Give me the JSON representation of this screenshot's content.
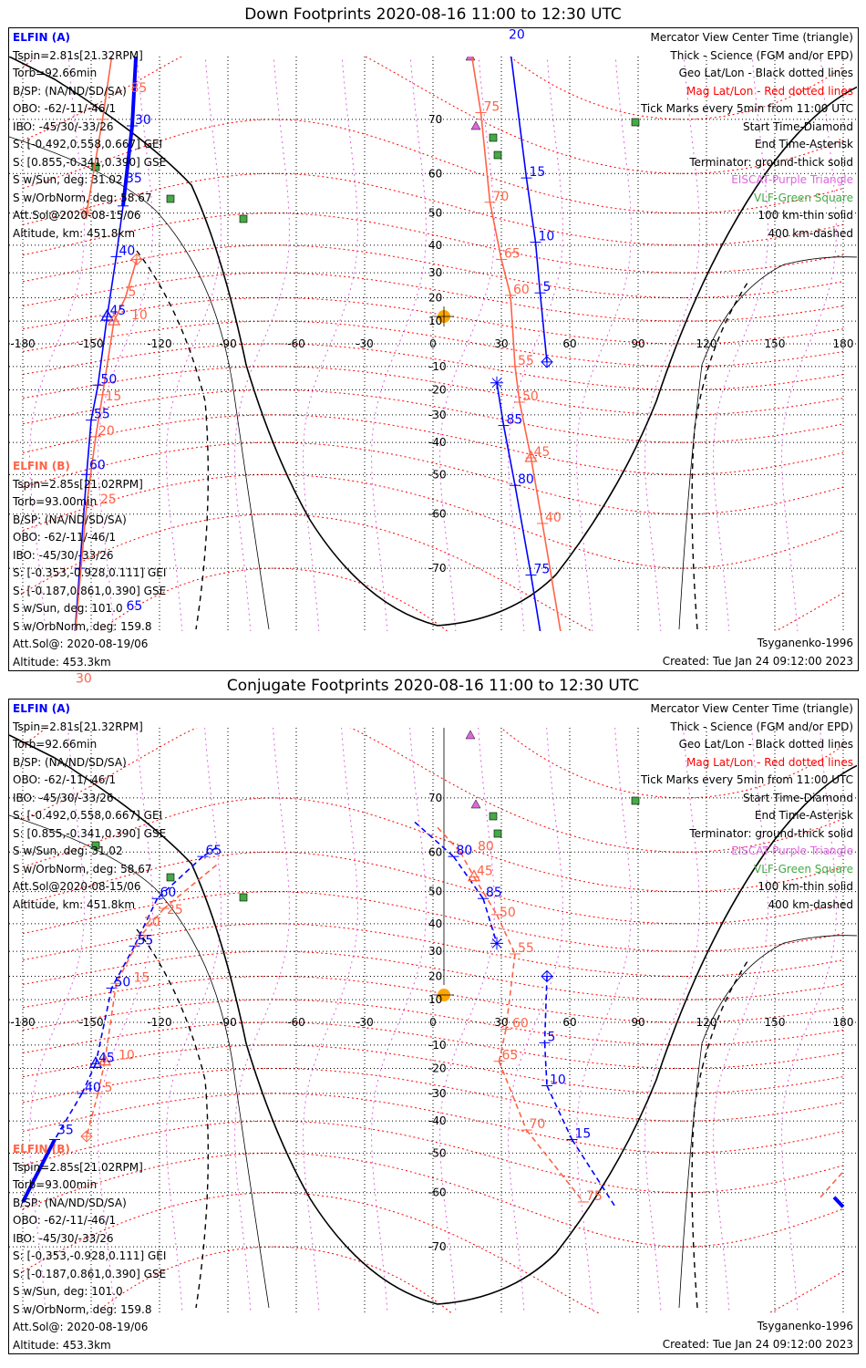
{
  "colors": {
    "elfin_a": "#0000ff",
    "elfin_b": "#ff6347",
    "geo_grid": "#000000",
    "mag_grid": "#ff0000",
    "eiscat": "#dd66dd",
    "vlf": "#44aa44",
    "sun": "#ffa500"
  },
  "legend": [
    {
      "text": "Mercator View Center Time (triangle)",
      "color": "#000000"
    },
    {
      "text": "Thick - Science (FGM and/or EPD)",
      "color": "#000000"
    },
    {
      "text": "Geo Lat/Lon - Black dotted lines",
      "color": "#000000"
    },
    {
      "text": "Mag Lat/Lon - Red dotted lines",
      "color": "#ff0000"
    },
    {
      "text": "Tick Marks every 5min from 11:00 UTC",
      "color": "#000000"
    },
    {
      "text": "Start Time-Diamond",
      "color": "#000000"
    },
    {
      "text": "End Time-Asterisk",
      "color": "#000000"
    },
    {
      "text": "Terminator: ground-thick solid",
      "color": "#000000"
    },
    {
      "text": "EISCAT-Purple Triangle",
      "color": "#dd66dd"
    },
    {
      "text": "VLF-Green Square",
      "color": "#44aa44"
    },
    {
      "text": "100 km-thin solid",
      "color": "#000000"
    },
    {
      "text": "400 km-dashed",
      "color": "#000000"
    }
  ],
  "elfin_a": {
    "name": "ELFIN (A)",
    "lines": [
      "Tspin=2.81s[21.32RPM]",
      "Torb=92.66min",
      "B/SP: (NA/ND/SD/SA)",
      "OBO: -62/-11/-46/1",
      "IBO: -45/30/-33/26",
      "S: [-0.492,0.558,0.667] GEI",
      "S: [0.855,-0.341,0.390] GSE",
      "S w/Sun, deg: 31.02",
      "S w/OrbNorm, deg: 58.67",
      "Att.Sol@2020-08-15/06",
      "Altitude, km: 451.8km"
    ]
  },
  "elfin_b": {
    "name": "ELFIN (B)",
    "lines": [
      "Tspin=2.85s[21.02RPM]",
      "Torb=93.00min",
      "B/SP: (NA/ND/SD/SA)",
      "OBO: -62/-11/-46/1",
      "IBO: -45/30/-33/26",
      "S: [-0.353,-0.928,0.111] GEI",
      "S: [-0.187,0.861,0.390] GSE",
      "S w/Sun, deg: 101.0",
      "S w/OrbNorm, deg: 159.8",
      "Att.Sol@: 2020-08-19/06",
      "Altitude: 453.3km"
    ]
  },
  "model": "Tsyganenko-1996",
  "created": "Created: Tue Jan 24 09:12:00 2023",
  "chart_data": [
    {
      "type": "line",
      "title": "Down Footprints 2020-08-16 11:00 to 12:30 UTC",
      "projection": "mercator",
      "lon_ticks": [
        "-180",
        "-150",
        "-120",
        "-90",
        "-60",
        "-30",
        "0",
        "30",
        "60",
        "90",
        "120",
        "150",
        "180"
      ],
      "lat_ticks": [
        "70",
        "60",
        "50",
        "40",
        "30",
        "20",
        "10",
        "0",
        "-10",
        "-20",
        "-30",
        "-40",
        "-50",
        "-60",
        "-70"
      ],
      "series": [
        {
          "name": "ELFIN (A)",
          "color": "#0000ff",
          "dashed": false,
          "points": [
            {
              "lon": -130,
              "lat": 79,
              "thick": true
            },
            {
              "lon": -132,
              "lat": 69,
              "label": "30",
              "thick": true
            },
            {
              "lon": -136,
              "lat": 52,
              "label": "35",
              "thick": true
            },
            {
              "lon": -139,
              "lat": 36,
              "label": "40"
            },
            {
              "lon": -143,
              "lat": 12,
              "label": "45",
              "tri": true
            },
            {
              "lon": -147,
              "lat": -18,
              "label": "50"
            },
            {
              "lon": -150,
              "lat": -32,
              "label": "55"
            },
            {
              "lon": -152,
              "lat": -50,
              "label": "60"
            },
            {
              "lon": -155,
              "lat": -70,
              "label": "65"
            },
            {
              "lon": -158,
              "lat": -80
            }
          ]
        },
        {
          "name": "ELFIN (A)",
          "color": "#0000ff",
          "dashed": false,
          "points": [
            {
              "lon": 32,
              "lat": 81,
              "label": "20"
            },
            {
              "lon": 41,
              "lat": 59,
              "label": "15"
            },
            {
              "lon": 45,
              "lat": 41,
              "label": "10"
            },
            {
              "lon": 47,
              "lat": 22,
              "label": "5"
            },
            {
              "lon": 50,
              "lat": -8,
              "start": true
            }
          ]
        },
        {
          "name": "ELFIN (A)",
          "color": "#0000ff",
          "dashed": false,
          "points": [
            {
              "lon": 28,
              "lat": -17,
              "end": true
            },
            {
              "lon": 31,
              "lat": -34,
              "label": "85"
            },
            {
              "lon": 36,
              "lat": -53,
              "label": "80"
            },
            {
              "lon": 43,
              "lat": -71,
              "label": "75"
            },
            {
              "lon": 49,
              "lat": -80
            }
          ]
        },
        {
          "name": "ELFIN (B)",
          "color": "#ff6347",
          "dashed": false,
          "points": [
            {
              "lon": -140,
              "lat": 79
            },
            {
              "lon": -145,
              "lat": 70,
              "label": "85"
            },
            {
              "lon": -152,
              "lat": 50,
              "end": true
            }
          ]
        },
        {
          "name": "ELFIN (B)",
          "color": "#ff6347",
          "dashed": false,
          "points": [
            {
              "lon": -130,
              "lat": 35,
              "start": true
            },
            {
              "lon": -135,
              "lat": 20,
              "label": "5"
            },
            {
              "lon": -140,
              "lat": 10,
              "label": "10",
              "tri": true
            },
            {
              "lon": -145,
              "lat": -22,
              "label": "15"
            },
            {
              "lon": -148,
              "lat": -38,
              "label": "20"
            },
            {
              "lon": -152,
              "lat": -58,
              "label": "25"
            },
            {
              "lon": -158,
              "lat": -80,
              "label": "30"
            }
          ]
        },
        {
          "name": "ELFIN (B)",
          "color": "#ff6347",
          "dashed": false,
          "points": [
            {
              "lon": 16,
              "lat": 79
            },
            {
              "lon": 21,
              "lat": 71,
              "label": "75"
            },
            {
              "lon": 25,
              "lat": 53,
              "label": "70"
            },
            {
              "lon": 30,
              "lat": 35,
              "label": "65"
            },
            {
              "lon": 34,
              "lat": 21,
              "label": "60"
            },
            {
              "lon": 36,
              "lat": -10,
              "label": "55"
            },
            {
              "lon": 38,
              "lat": -25,
              "label": "50"
            },
            {
              "lon": 43,
              "lat": -45,
              "label": "45",
              "tri": true
            },
            {
              "lon": 48,
              "lat": -62,
              "label": "40"
            },
            {
              "lon": 58,
              "lat": -80
            }
          ]
        }
      ]
    },
    {
      "type": "line",
      "title": "Conjugate Footprints 2020-08-16 11:00 to 12:30 UTC",
      "projection": "mercator",
      "lon_ticks": [
        "-180",
        "-150",
        "-120",
        "-90",
        "-60",
        "-30",
        "0",
        "30",
        "60",
        "90",
        "120",
        "150",
        "180"
      ],
      "lat_ticks": [
        "70",
        "60",
        "50",
        "40",
        "30",
        "20",
        "10",
        "0",
        "-10",
        "-20",
        "-30",
        "-40",
        "-50",
        "-60",
        "-70"
      ],
      "series": [
        {
          "name": "ELFIN (A)",
          "color": "#0000ff",
          "dashed": true,
          "points": [
            {
              "lon": -95,
              "lat": 61
            },
            {
              "lon": -101,
              "lat": 59,
              "label": "65"
            },
            {
              "lon": -121,
              "lat": 48,
              "label": "60"
            },
            {
              "lon": -131,
              "lat": 32,
              "label": "55"
            },
            {
              "lon": -141,
              "lat": 15,
              "label": "50"
            },
            {
              "lon": -148,
              "lat": -18,
              "label": "45",
              "tri": true
            },
            {
              "lon": -154,
              "lat": -30,
              "label": "40"
            },
            {
              "lon": -166,
              "lat": -46,
              "label": "35",
              "thick": true
            },
            {
              "lon": -180,
              "lat": -62,
              "thick": true
            }
          ]
        },
        {
          "name": "ELFIN (A)",
          "color": "#0000ff",
          "dashed": false,
          "points": [
            {
              "lon": 176,
              "lat": -61,
              "thick": true
            },
            {
              "lon": 180,
              "lat": -63,
              "thick": true
            }
          ]
        },
        {
          "name": "ELFIN (A)",
          "color": "#0000ff",
          "dashed": true,
          "points": [
            {
              "lon": -8,
              "lat": 66
            },
            {
              "lon": 9,
              "lat": 59,
              "label": "80"
            },
            {
              "lon": 22,
              "lat": 48,
              "label": "85"
            },
            {
              "lon": 28,
              "lat": 33,
              "end": true
            }
          ]
        },
        {
          "name": "ELFIN (A)",
          "color": "#0000ff",
          "dashed": true,
          "points": [
            {
              "lon": 50,
              "lat": 20,
              "start": true
            },
            {
              "lon": 49,
              "lat": -9,
              "label": "5"
            },
            {
              "lon": 50,
              "lat": -27,
              "label": "10"
            },
            {
              "lon": 61,
              "lat": -46,
              "label": "15"
            },
            {
              "lon": 80,
              "lat": -63
            }
          ]
        },
        {
          "name": "ELFIN (B)",
          "color": "#ff6347",
          "dashed": true,
          "points": [
            {
              "lon": -95,
              "lat": 57
            },
            {
              "lon": -118,
              "lat": 45,
              "label": "25"
            },
            {
              "lon": -128,
              "lat": 36,
              "label": "20"
            },
            {
              "lon": -139,
              "lat": 17,
              "label": "15"
            },
            {
              "lon": -144,
              "lat": -17,
              "label": "10",
              "tri": true
            },
            {
              "lon": -147,
              "lat": -30,
              "label": "5"
            },
            {
              "lon": -152,
              "lat": -45,
              "start": true
            }
          ]
        },
        {
          "name": "ELFIN (B)",
          "color": "#ff6347",
          "dashed": true,
          "points": [
            {
              "lon": 170,
              "lat": -61
            },
            {
              "lon": 180,
              "lat": -55
            }
          ]
        },
        {
          "name": "ELFIN (B)",
          "color": "#ff6347",
          "dashed": true,
          "points": [
            {
              "lon": 2,
              "lat": 65
            },
            {
              "lon": 12,
              "lat": 60,
              "label": "80"
            },
            {
              "lon": 18,
              "lat": 54,
              "label": "45",
              "tri": true
            },
            {
              "lon": 28,
              "lat": 43,
              "label": "50"
            },
            {
              "lon": 36,
              "lat": 29,
              "label": "55"
            },
            {
              "lon": 32,
              "lat": -3,
              "label": "60"
            },
            {
              "lon": 29,
              "lat": -17,
              "label": "65"
            },
            {
              "lon": 41,
              "lat": -43,
              "label": "70"
            },
            {
              "lon": 66,
              "lat": -62,
              "label": "75"
            }
          ]
        }
      ]
    }
  ]
}
